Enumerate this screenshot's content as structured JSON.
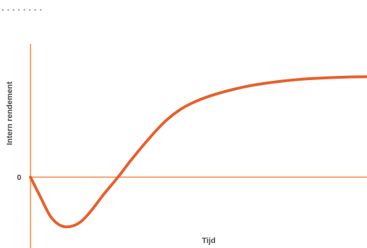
{
  "chart_data": {
    "type": "line",
    "title": "",
    "xlabel": "Tijd",
    "ylabel": "Intern rendement",
    "y_tick_labels": [
      "0"
    ],
    "axis_color": "#f4a674",
    "line_color": "#e8602c",
    "decoration_color": "#9a9a9a",
    "grid": false,
    "legend": "none",
    "xlim": [
      0,
      100
    ],
    "ylim": [
      -25,
      40
    ],
    "series": [
      {
        "x": [
          0,
          3,
          6,
          9,
          12,
          15,
          18,
          22,
          26,
          30,
          35,
          40,
          45,
          50,
          55,
          60,
          65,
          70,
          75,
          80,
          85,
          90,
          95,
          100
        ],
        "y": [
          0,
          -7.5,
          -14.7,
          -18,
          -18.3,
          -16.5,
          -12.5,
          -6,
          0,
          6.5,
          14,
          20.7,
          25.5,
          28.6,
          30.8,
          32.5,
          33.9,
          34.9,
          35.7,
          36.3,
          36.7,
          37,
          37.2,
          37.3
        ]
      }
    ]
  }
}
